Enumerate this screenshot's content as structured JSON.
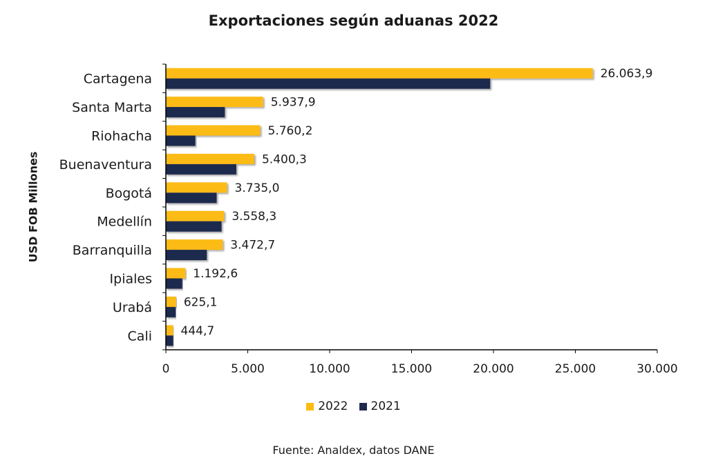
{
  "chart_data": {
    "type": "bar",
    "orientation": "horizontal",
    "title": "Exportaciones según aduanas 2022",
    "xlabel": "",
    "ylabel": "USD FOB Millones",
    "categories": [
      "Cartagena",
      "Santa Marta",
      "Riohacha",
      "Buenaventura",
      "Bogotá",
      "Medellín",
      "Barranquilla",
      "Ipiales",
      "Urabá",
      "Cali"
    ],
    "series": [
      {
        "name": "2022",
        "color": "#FDBB12",
        "values": [
          26063.9,
          5937.9,
          5760.2,
          5400.3,
          3735.0,
          3558.3,
          3472.7,
          1192.6,
          625.1,
          444.7
        ],
        "labels": [
          "26.063,9",
          "5.937,9",
          "5.760,2",
          "5.400,3",
          "3.735,0",
          "3.558,3",
          "3.472,7",
          "1.192,6",
          "625,1",
          "444,7"
        ]
      },
      {
        "name": "2021",
        "color": "#1F2A4E",
        "values": [
          19800,
          3600,
          1800,
          4300,
          3100,
          3400,
          2500,
          1000,
          600,
          450
        ]
      }
    ],
    "xlim": [
      0,
      30000
    ],
    "xticks": [
      0,
      5000,
      10000,
      15000,
      20000,
      25000,
      30000
    ],
    "xtick_labels": [
      "0",
      "5.000",
      "10.000",
      "15.000",
      "20.000",
      "25.000",
      "30.000"
    ],
    "grid": false,
    "legend_position": "bottom"
  },
  "source": "Fuente: Analdex, datos DANE"
}
